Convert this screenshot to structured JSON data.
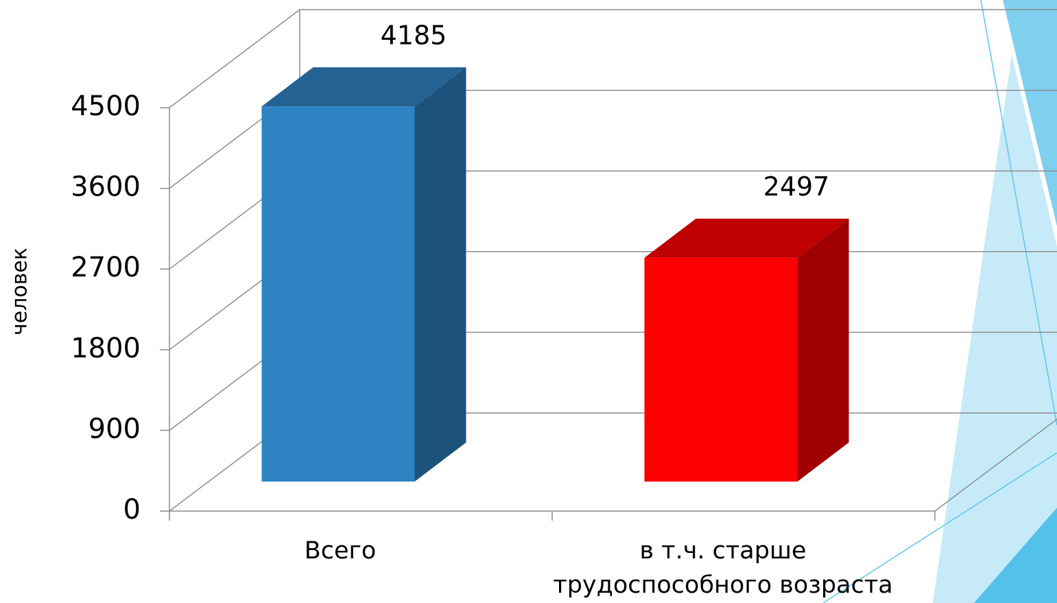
{
  "chart_data": {
    "type": "bar3d",
    "y_axis_label": "человек",
    "categories": [
      "Всего",
      "в т.ч. старше трудоспособного возраста"
    ],
    "values": [
      4185,
      2497
    ],
    "colors": [
      "#2e83c2",
      "#ff0000"
    ],
    "ylim": [
      0,
      4500
    ],
    "yticks": [
      0,
      900,
      1800,
      2700,
      3600,
      4500
    ],
    "grid": true
  }
}
